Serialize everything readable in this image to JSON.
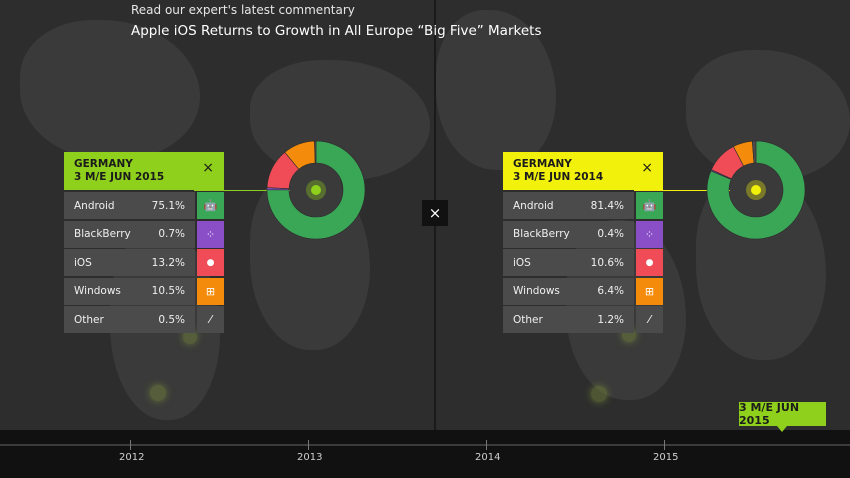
{
  "header": {
    "subtitle": "Read our expert's latest commentary",
    "title": "Apple iOS Returns to Growth in All Europe “Big Five” Markets"
  },
  "colors": {
    "android": "#3aa757",
    "blackberry": "#8a4fc7",
    "ios": "#ef4c57",
    "windows": "#f58b0a",
    "other": "#4b4b4b",
    "left_accent": "#8fd01c",
    "right_accent": "#f1f10c"
  },
  "left_panel": {
    "title_line1": "GERMANY",
    "title_line2": "3 M/E JUN 2015",
    "close": "×",
    "rows": [
      {
        "label": "Android",
        "value": "75.1%",
        "icon": "android-icon"
      },
      {
        "label": "BlackBerry",
        "value": "0.7%",
        "icon": "blackberry-icon"
      },
      {
        "label": "iOS",
        "value": "13.2%",
        "icon": "apple-icon"
      },
      {
        "label": "Windows",
        "value": "10.5%",
        "icon": "windows-icon"
      },
      {
        "label": "Other",
        "value": "0.5%",
        "icon": "slash-icon"
      }
    ]
  },
  "right_panel": {
    "title_line1": "GERMANY",
    "title_line2": "3 M/E JUN 2014",
    "close": "×",
    "rows": [
      {
        "label": "Android",
        "value": "81.4%",
        "icon": "android-icon"
      },
      {
        "label": "BlackBerry",
        "value": "0.4%",
        "icon": "blackberry-icon"
      },
      {
        "label": "iOS",
        "value": "10.6%",
        "icon": "apple-icon"
      },
      {
        "label": "Windows",
        "value": "6.4%",
        "icon": "windows-icon"
      },
      {
        "label": "Other",
        "value": "1.2%",
        "icon": "slash-icon"
      }
    ]
  },
  "center_close": "×",
  "timeline": {
    "years": [
      "2012",
      "2013",
      "2014",
      "2015"
    ],
    "selected": "3 M/E JUN 2015"
  },
  "chart_data": [
    {
      "type": "pie",
      "categories": [
        "Android",
        "BlackBerry",
        "iOS",
        "Windows",
        "Other"
      ],
      "values": [
        75.1,
        0.7,
        13.2,
        10.5,
        0.5
      ]
    },
    {
      "type": "pie",
      "categories": [
        "Android",
        "BlackBerry",
        "iOS",
        "Windows",
        "Other"
      ],
      "values": [
        81.4,
        0.4,
        10.6,
        6.4,
        1.2
      ]
    }
  ]
}
